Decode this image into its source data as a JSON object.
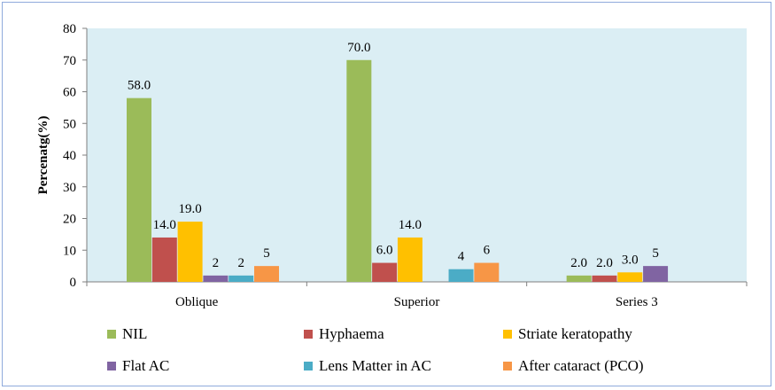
{
  "chart_data": {
    "type": "bar",
    "title": "",
    "xlabel": "",
    "ylabel": "Percenatg(%)",
    "ylim": [
      0,
      80
    ],
    "yticks": [
      0,
      10,
      20,
      30,
      40,
      50,
      60,
      70,
      80
    ],
    "grid": false,
    "legend_position": "bottom",
    "categories": [
      "Oblique",
      "Superior",
      "Series 3"
    ],
    "series": [
      {
        "name": "NIL",
        "color": "#9bbb59",
        "values": [
          58,
          70,
          2
        ],
        "labels": [
          "58.0",
          "70.0",
          "2.0"
        ]
      },
      {
        "name": "Hyphaema",
        "color": "#c0504d",
        "values": [
          14,
          6,
          2
        ],
        "labels": [
          "14.0",
          "6.0",
          "2.0"
        ]
      },
      {
        "name": "Striate keratopathy",
        "color": "#ffc000",
        "values": [
          19,
          14,
          3
        ],
        "labels": [
          "19.0",
          "14.0",
          "3.0"
        ]
      },
      {
        "name": "Flat AC",
        "color": "#8064a2",
        "values": [
          2,
          null,
          5
        ],
        "labels": [
          "2",
          "",
          "5"
        ]
      },
      {
        "name": "Lens Matter in AC",
        "color": "#4bacc6",
        "values": [
          2,
          4,
          null
        ],
        "labels": [
          "2",
          "4",
          ""
        ]
      },
      {
        "name": "After cataract (PCO)",
        "color": "#f79646",
        "values": [
          5,
          6,
          null
        ],
        "labels": [
          "5",
          "6",
          ""
        ]
      }
    ],
    "plot_background": "#dbeef4"
  }
}
